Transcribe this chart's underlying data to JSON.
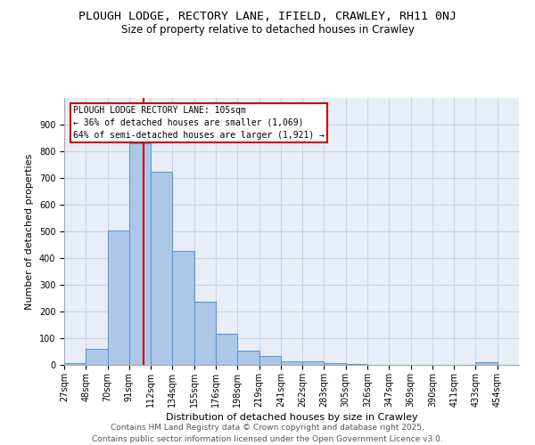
{
  "title1": "PLOUGH LODGE, RECTORY LANE, IFIELD, CRAWLEY, RH11 0NJ",
  "title2": "Size of property relative to detached houses in Crawley",
  "xlabel": "Distribution of detached houses by size in Crawley",
  "ylabel": "Number of detached properties",
  "bin_labels": [
    "27sqm",
    "48sqm",
    "70sqm",
    "91sqm",
    "112sqm",
    "134sqm",
    "155sqm",
    "176sqm",
    "198sqm",
    "219sqm",
    "241sqm",
    "262sqm",
    "283sqm",
    "305sqm",
    "326sqm",
    "347sqm",
    "369sqm",
    "390sqm",
    "411sqm",
    "433sqm",
    "454sqm"
  ],
  "bar_heights": [
    8,
    60,
    505,
    830,
    725,
    428,
    238,
    117,
    55,
    33,
    15,
    12,
    7,
    5,
    1,
    0,
    0,
    0,
    0,
    10,
    0
  ],
  "bar_color": "#aec6e8",
  "bar_edge_color": "#5b9bd5",
  "property_bar_index": 4,
  "red_line_x": 4.0,
  "annotation_text": "PLOUGH LODGE RECTORY LANE: 105sqm\n← 36% of detached houses are smaller (1,069)\n64% of semi-detached houses are larger (1,921) →",
  "annotation_box_edge_color": "#cc0000",
  "annotation_fill": "#ffffff",
  "ylim": [
    0,
    1000
  ],
  "yticks": [
    0,
    100,
    200,
    300,
    400,
    500,
    600,
    700,
    800,
    900,
    1000
  ],
  "grid_color": "#c8d4e8",
  "bg_color": "#e8eef8",
  "footer_line1": "Contains HM Land Registry data © Crown copyright and database right 2025.",
  "footer_line2": "Contains public sector information licensed under the Open Government Licence v3.0.",
  "title_fontsize": 9.5,
  "subtitle_fontsize": 8.5,
  "axis_label_fontsize": 8,
  "tick_fontsize": 7,
  "footer_fontsize": 6.5,
  "annotation_fontsize": 7
}
